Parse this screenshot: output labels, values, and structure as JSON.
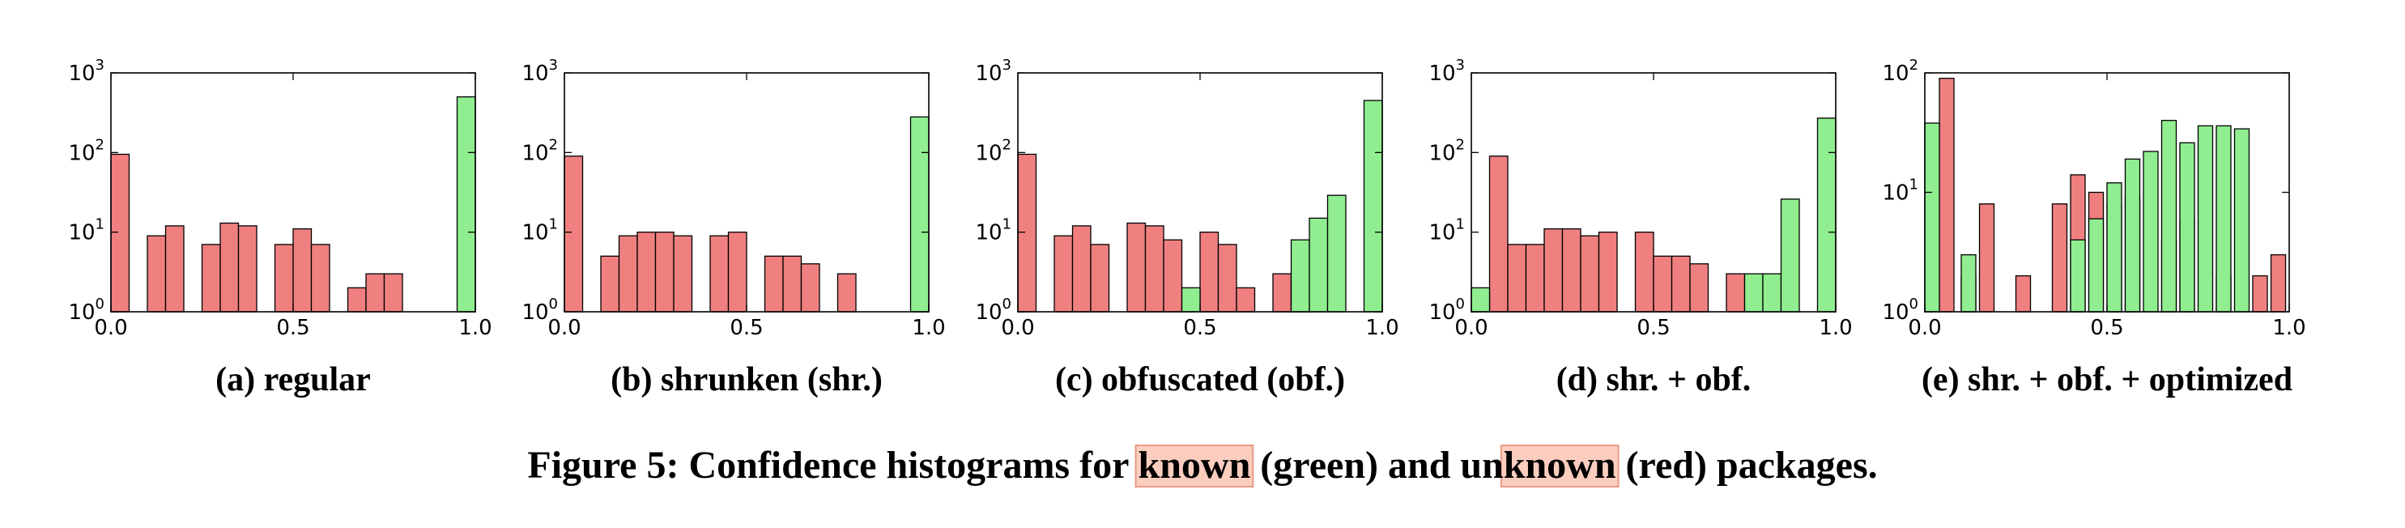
{
  "caption": {
    "prefix": "Figure 5: Confidence histograms for ",
    "known": "known",
    "mid1": " (green) and un",
    "unknown_highlight": "known",
    "suffix": " (red) packages."
  },
  "colors": {
    "known": "#90ee90",
    "unknown": "#f08080",
    "highlight_fill": "#fbcdbf",
    "highlight_stroke": "#e89c86"
  },
  "chart_data": [
    {
      "type": "bar",
      "caption": "(a) regular",
      "x_ticks": [
        "0.0",
        "0.5",
        "1.0"
      ],
      "xlim": [
        0,
        1
      ],
      "y_scale": "log",
      "ylim": [
        1,
        1000
      ],
      "y_ticks": [
        {
          "base": "10",
          "exp": "0"
        },
        {
          "base": "10",
          "exp": "1"
        },
        {
          "base": "10",
          "exp": "2"
        },
        {
          "base": "10",
          "exp": "3"
        }
      ],
      "bin_width": 0.05,
      "series": [
        {
          "values": [
            [
              0.0,
              95
            ],
            [
              0.1,
              9
            ],
            [
              0.15,
              12
            ],
            [
              0.25,
              7
            ],
            [
              0.3,
              13
            ],
            [
              0.35,
              12
            ],
            [
              0.45,
              7
            ],
            [
              0.5,
              11
            ],
            [
              0.55,
              7
            ],
            [
              0.65,
              2
            ],
            [
              0.7,
              3
            ],
            [
              0.75,
              3
            ]
          ]
        },
        {
          "values": [
            [
              0.95,
              500
            ]
          ]
        }
      ]
    },
    {
      "type": "bar",
      "caption": "(b) shrunken (shr.)",
      "x_ticks": [
        "0.0",
        "0.5",
        "1.0"
      ],
      "xlim": [
        0,
        1
      ],
      "y_scale": "log",
      "ylim": [
        1,
        1000
      ],
      "y_ticks": [
        {
          "base": "10",
          "exp": "0"
        },
        {
          "base": "10",
          "exp": "1"
        },
        {
          "base": "10",
          "exp": "2"
        },
        {
          "base": "10",
          "exp": "3"
        }
      ],
      "bin_width": 0.05,
      "series": [
        {
          "values": [
            [
              0.0,
              90
            ],
            [
              0.1,
              5
            ],
            [
              0.15,
              9
            ],
            [
              0.2,
              10
            ],
            [
              0.25,
              10
            ],
            [
              0.3,
              9
            ],
            [
              0.4,
              9
            ],
            [
              0.45,
              10
            ],
            [
              0.55,
              5
            ],
            [
              0.6,
              5
            ],
            [
              0.65,
              4
            ],
            [
              0.75,
              3
            ]
          ]
        },
        {
          "values": [
            [
              0.95,
              280
            ]
          ]
        }
      ]
    },
    {
      "type": "bar",
      "caption": "(c) obfuscated (obf.)",
      "x_ticks": [
        "0.0",
        "0.5",
        "1.0"
      ],
      "xlim": [
        0,
        1
      ],
      "y_scale": "log",
      "ylim": [
        1,
        1000
      ],
      "y_ticks": [
        {
          "base": "10",
          "exp": "0"
        },
        {
          "base": "10",
          "exp": "1"
        },
        {
          "base": "10",
          "exp": "2"
        },
        {
          "base": "10",
          "exp": "3"
        }
      ],
      "bin_width": 0.05,
      "series": [
        {
          "values": [
            [
              0.0,
              95
            ],
            [
              0.1,
              9
            ],
            [
              0.15,
              12
            ],
            [
              0.2,
              7
            ],
            [
              0.3,
              13
            ],
            [
              0.35,
              12
            ],
            [
              0.4,
              8
            ],
            [
              0.5,
              10
            ],
            [
              0.55,
              7
            ],
            [
              0.6,
              2
            ],
            [
              0.7,
              3
            ],
            [
              0.75,
              3
            ]
          ]
        },
        {
          "values": [
            [
              0.45,
              2
            ],
            [
              0.75,
              8
            ],
            [
              0.8,
              15
            ],
            [
              0.85,
              29
            ],
            [
              0.95,
              450
            ]
          ]
        }
      ]
    },
    {
      "type": "bar",
      "caption": "(d) shr. + obf.",
      "x_ticks": [
        "0.0",
        "0.5",
        "1.0"
      ],
      "xlim": [
        0,
        1
      ],
      "y_scale": "log",
      "ylim": [
        1,
        1000
      ],
      "y_ticks": [
        {
          "base": "10",
          "exp": "0"
        },
        {
          "base": "10",
          "exp": "1"
        },
        {
          "base": "10",
          "exp": "2"
        },
        {
          "base": "10",
          "exp": "3"
        }
      ],
      "bin_width": 0.05,
      "series": [
        {
          "values": [
            [
              0.05,
              90
            ],
            [
              0.1,
              7
            ],
            [
              0.15,
              7
            ],
            [
              0.2,
              11
            ],
            [
              0.25,
              11
            ],
            [
              0.3,
              9
            ],
            [
              0.35,
              10
            ],
            [
              0.45,
              10
            ],
            [
              0.5,
              5
            ],
            [
              0.55,
              5
            ],
            [
              0.6,
              4
            ],
            [
              0.7,
              3
            ]
          ]
        },
        {
          "values": [
            [
              0.0,
              2
            ],
            [
              0.75,
              3
            ],
            [
              0.8,
              3
            ],
            [
              0.85,
              26
            ],
            [
              0.95,
              270
            ]
          ]
        }
      ]
    },
    {
      "type": "bar",
      "caption": "(e) shr. + obf. + optimized",
      "x_ticks": [
        "0.0",
        "0.5",
        "1.0"
      ],
      "xlim": [
        0,
        1
      ],
      "y_scale": "log",
      "ylim": [
        1,
        100
      ],
      "y_ticks": [
        {
          "base": "10",
          "exp": "0"
        },
        {
          "base": "10",
          "exp": "1"
        },
        {
          "base": "10",
          "exp": "2"
        }
      ],
      "bin_width": 0.04,
      "series": [
        {
          "values": [
            [
              0.04,
              90
            ],
            [
              0.1,
              2
            ],
            [
              0.15,
              8
            ],
            [
              0.25,
              2
            ],
            [
              0.35,
              8
            ],
            [
              0.4,
              14
            ],
            [
              0.45,
              10
            ],
            [
              0.5,
              8
            ],
            [
              0.55,
              9
            ],
            [
              0.65,
              4
            ],
            [
              0.7,
              6
            ],
            [
              0.8,
              2
            ],
            [
              0.9,
              2
            ],
            [
              0.95,
              3
            ]
          ]
        },
        {
          "values": [
            [
              0.0,
              38
            ],
            [
              0.1,
              3
            ],
            [
              0.4,
              4
            ],
            [
              0.45,
              6
            ],
            [
              0.5,
              12
            ],
            [
              0.55,
              19
            ],
            [
              0.6,
              22
            ],
            [
              0.65,
              40
            ],
            [
              0.7,
              26
            ],
            [
              0.75,
              36
            ],
            [
              0.8,
              36
            ],
            [
              0.85,
              34
            ]
          ]
        }
      ]
    }
  ]
}
